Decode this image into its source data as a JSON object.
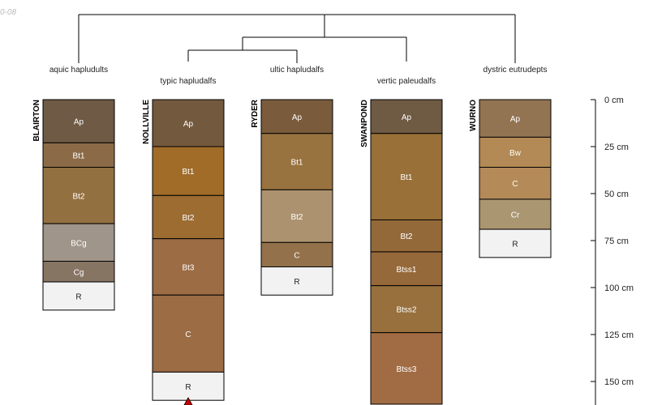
{
  "corner_note": "0-08",
  "depth_axis": {
    "unit": "cm",
    "ticks": [
      {
        "value": 0,
        "label": "0 cm"
      },
      {
        "value": 25,
        "label": "25 cm"
      },
      {
        "value": 50,
        "label": "50 cm"
      },
      {
        "value": 75,
        "label": "75 cm"
      },
      {
        "value": 100,
        "label": "100 cm"
      },
      {
        "value": 125,
        "label": "125 cm"
      },
      {
        "value": 150,
        "label": "150 cm"
      }
    ]
  },
  "profiles": [
    {
      "id": "blairton",
      "series": "BLAIRTON",
      "taxon": "aquic hapludults",
      "horizons": [
        {
          "name": "Ap",
          "top": 0,
          "bottom": 23,
          "color": "#6e5a45"
        },
        {
          "name": "Bt1",
          "top": 23,
          "bottom": 36,
          "color": "#8b6b47"
        },
        {
          "name": "Bt2",
          "top": 36,
          "bottom": 66,
          "color": "#93703f"
        },
        {
          "name": "BCg",
          "top": 66,
          "bottom": 86,
          "color": "#a0958a"
        },
        {
          "name": "Cg",
          "top": 86,
          "bottom": 97,
          "color": "#877563"
        },
        {
          "name": "R",
          "top": 97,
          "bottom": 112,
          "color": "#f2f2f2"
        }
      ]
    },
    {
      "id": "nollville",
      "series": "NOLLVILLE",
      "taxon": "typic hapludalfs",
      "horizons": [
        {
          "name": "Ap",
          "top": 0,
          "bottom": 25,
          "color": "#735a3e"
        },
        {
          "name": "Bt1",
          "top": 25,
          "bottom": 51,
          "color": "#a06c28"
        },
        {
          "name": "Bt2",
          "top": 51,
          "bottom": 74,
          "color": "#9c6c31"
        },
        {
          "name": "Bt3",
          "top": 74,
          "bottom": 104,
          "color": "#9c6c45"
        },
        {
          "name": "C",
          "top": 104,
          "bottom": 145,
          "color": "#9c6c45"
        },
        {
          "name": "R",
          "top": 145,
          "bottom": 160,
          "color": "#f2f2f2"
        }
      ]
    },
    {
      "id": "ryder",
      "series": "RYDER",
      "taxon": "ultic hapludalfs",
      "horizons": [
        {
          "name": "Ap",
          "top": 0,
          "bottom": 18,
          "color": "#7a5c3c"
        },
        {
          "name": "Bt1",
          "top": 18,
          "bottom": 48,
          "color": "#98723f"
        },
        {
          "name": "Bt2",
          "top": 48,
          "bottom": 76,
          "color": "#ad926f"
        },
        {
          "name": "C",
          "top": 76,
          "bottom": 89,
          "color": "#93714b"
        },
        {
          "name": "R",
          "top": 89,
          "bottom": 104,
          "color": "#f2f2f2"
        }
      ]
    },
    {
      "id": "swanpond",
      "series": "SWANPOND",
      "taxon": "vertic paleudalfs",
      "horizons": [
        {
          "name": "Ap",
          "top": 0,
          "bottom": 18,
          "color": "#6f5a44"
        },
        {
          "name": "Bt1",
          "top": 18,
          "bottom": 64,
          "color": "#987038"
        },
        {
          "name": "Bt2",
          "top": 64,
          "bottom": 81,
          "color": "#93693a"
        },
        {
          "name": "Btss1",
          "top": 81,
          "bottom": 99,
          "color": "#96693a"
        },
        {
          "name": "Btss2",
          "top": 99,
          "bottom": 124,
          "color": "#98703e"
        },
        {
          "name": "Btss3",
          "top": 124,
          "bottom": 165,
          "color": "#a16c43"
        }
      ]
    },
    {
      "id": "wurno",
      "series": "WURNO",
      "taxon": "dystric eutrudepts",
      "horizons": [
        {
          "name": "Ap",
          "top": 0,
          "bottom": 20,
          "color": "#937452"
        },
        {
          "name": "Bw",
          "top": 20,
          "bottom": 36,
          "color": "#b38a55"
        },
        {
          "name": "C",
          "top": 36,
          "bottom": 53,
          "color": "#b48a58"
        },
        {
          "name": "Cr",
          "top": 53,
          "bottom": 69,
          "color": "#aa9671"
        },
        {
          "name": "R",
          "top": 69,
          "bottom": 84,
          "color": "#f2f2f2"
        }
      ]
    }
  ]
}
